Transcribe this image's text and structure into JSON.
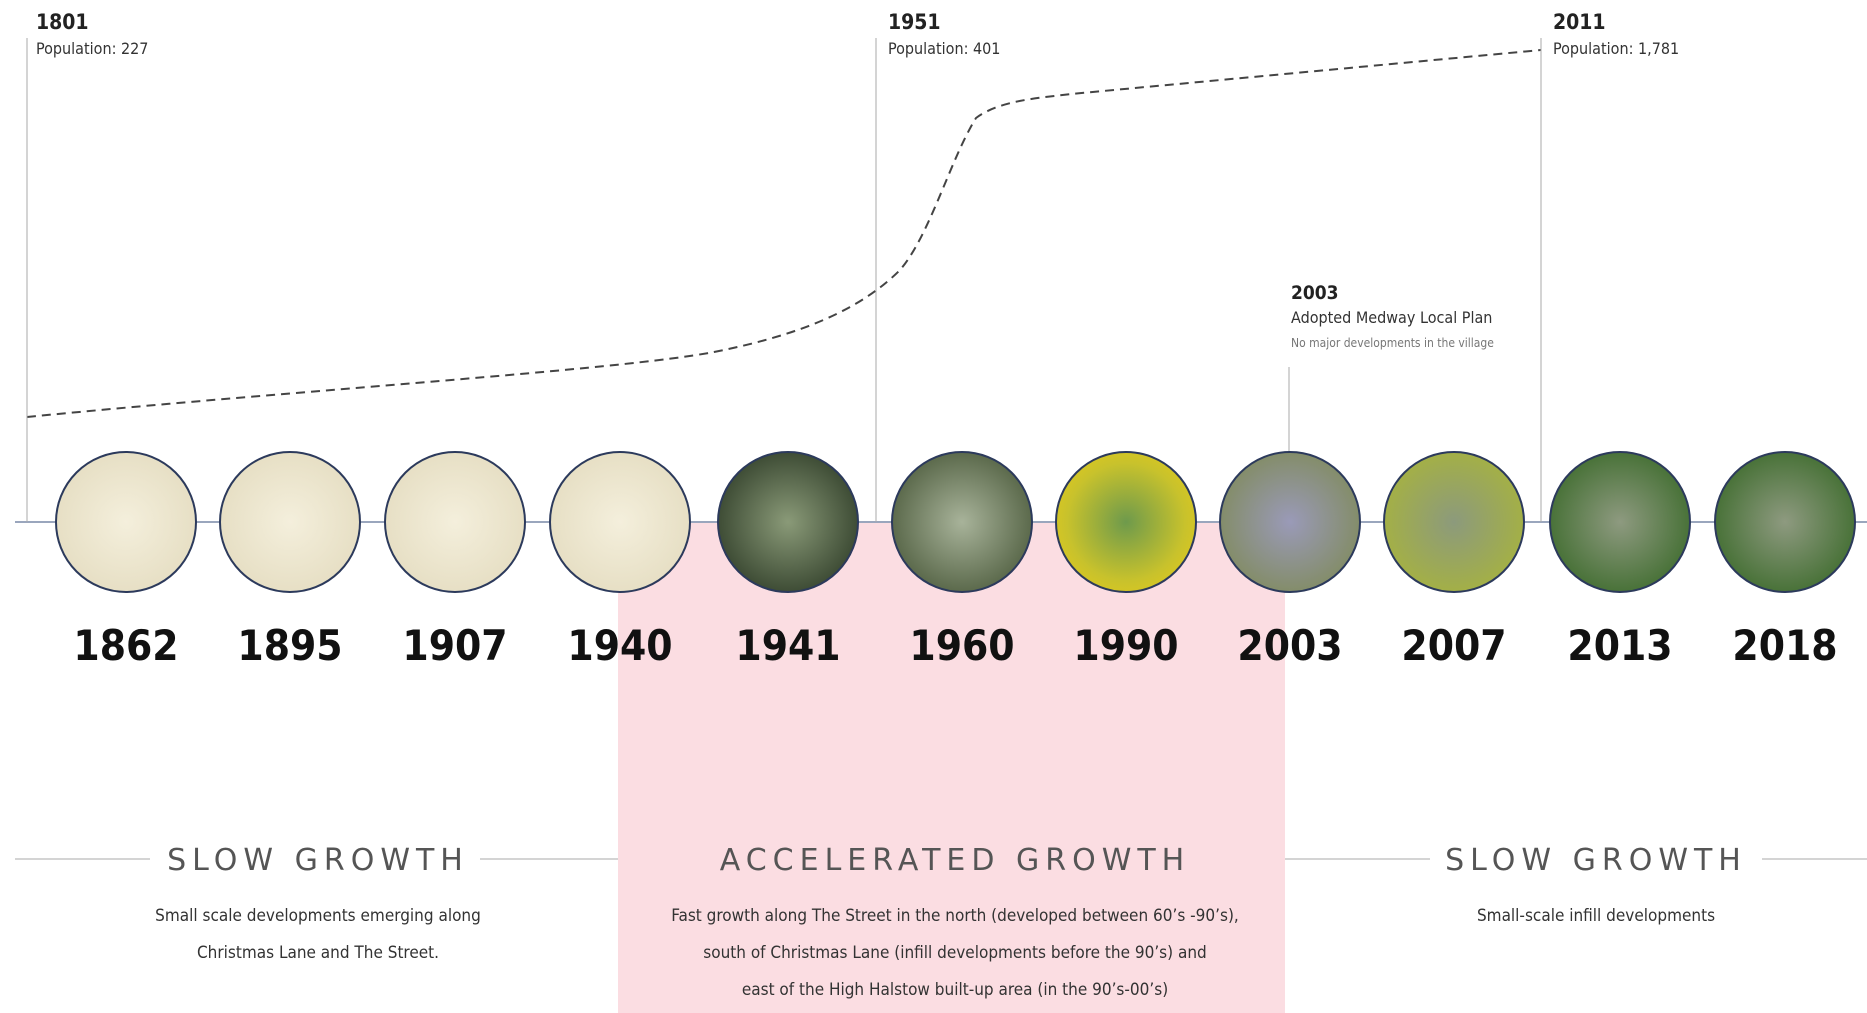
{
  "population_markers": [
    {
      "year": "1801",
      "label": "Population: 227"
    },
    {
      "year": "1951",
      "label": "Population: 401"
    },
    {
      "year": "2011",
      "label": "Population: 1,781"
    }
  ],
  "plan_marker": {
    "year": "2003",
    "title": "Adopted Medway Local Plan",
    "note": "No major developments in the village"
  },
  "timeline": [
    "1862",
    "1895",
    "1907",
    "1940",
    "1941",
    "1960",
    "1990",
    "2003",
    "2007",
    "2013",
    "2018"
  ],
  "phases": [
    {
      "title": "SLOW GROWTH",
      "lines": [
        "Small scale developments emerging along",
        "Christmas Lane and The Street."
      ]
    },
    {
      "title": "ACCELERATED   GROWTH",
      "lines": [
        "Fast growth along The Street in the north (developed between 60’s -90’s),",
        "south of Christmas Lane (infill developments before the 90’s) and",
        "east of the High Halstow built-up area (in the 90’s-00’s)"
      ]
    },
    {
      "title": "SLOW GROWTH",
      "lines": [
        "Small-scale infill developments"
      ]
    }
  ]
}
